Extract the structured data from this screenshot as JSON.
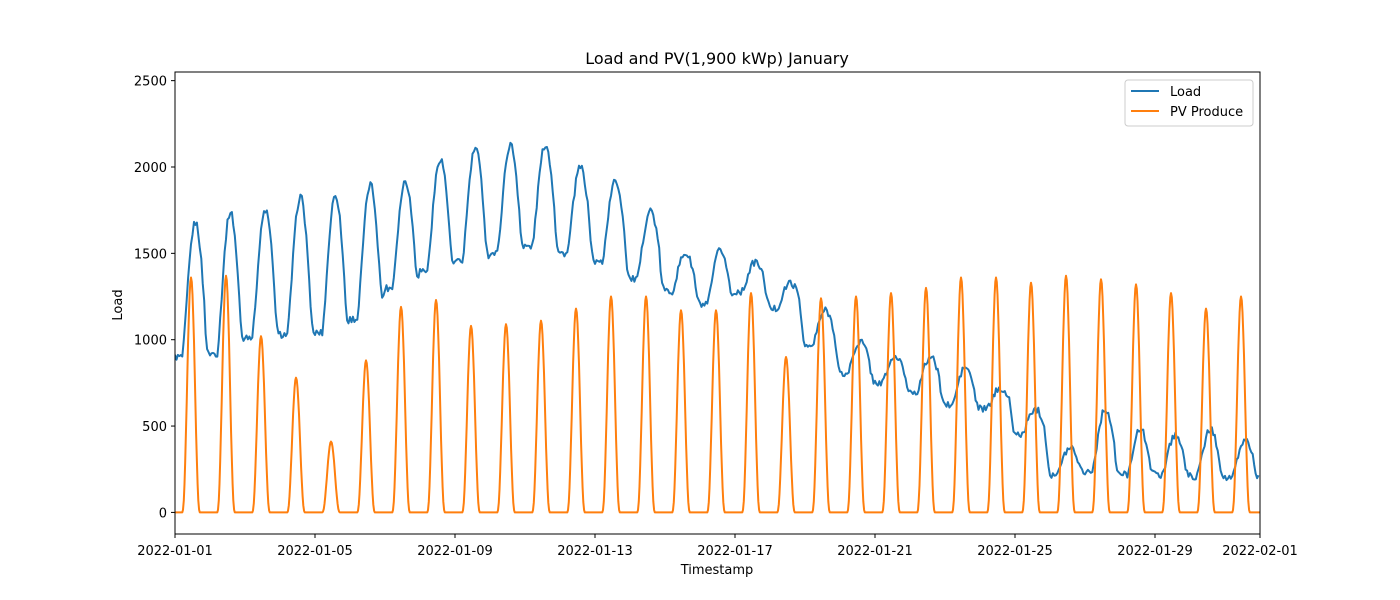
{
  "chart_data": {
    "type": "line",
    "title": "Load and PV(1,900 kWp) January",
    "xlabel": "Timestamp",
    "ylabel": "Load",
    "x_unit": "date",
    "xlim": [
      "2022-01-01",
      "2022-02-01"
    ],
    "ylim": [
      -125,
      2550
    ],
    "yticks": [
      0,
      500,
      1000,
      1500,
      2000,
      2500
    ],
    "xticks": [
      "2022-01-01",
      "2022-01-05",
      "2022-01-09",
      "2022-01-13",
      "2022-01-17",
      "2022-01-21",
      "2022-01-25",
      "2022-01-29",
      "2022-02-01"
    ],
    "grid": false,
    "legend_position": "top-right",
    "series": [
      {
        "name": "Load",
        "color": "#1f77b4",
        "daily_profile": [
          [
            "2022-01-01",
            900,
            1680
          ],
          [
            "2022-01-02",
            920,
            1740
          ],
          [
            "2022-01-03",
            1020,
            1750
          ],
          [
            "2022-01-04",
            1030,
            1830
          ],
          [
            "2022-01-05",
            1040,
            1840
          ],
          [
            "2022-01-06",
            1120,
            1900
          ],
          [
            "2022-01-07",
            1300,
            1920
          ],
          [
            "2022-01-08",
            1400,
            2050
          ],
          [
            "2022-01-09",
            1450,
            2110
          ],
          [
            "2022-01-10",
            1500,
            2130
          ],
          [
            "2022-01-11",
            1540,
            2130
          ],
          [
            "2022-01-12",
            1500,
            2000
          ],
          [
            "2022-01-13",
            1450,
            1920
          ],
          [
            "2022-01-14",
            1350,
            1750
          ],
          [
            "2022-01-15",
            1280,
            1500
          ],
          [
            "2022-01-16",
            1200,
            1520
          ],
          [
            "2022-01-17",
            1280,
            1450
          ],
          [
            "2022-01-18",
            1180,
            1330
          ],
          [
            "2022-01-19",
            960,
            1170
          ],
          [
            "2022-01-20",
            800,
            990
          ],
          [
            "2022-01-21",
            750,
            900
          ],
          [
            "2022-01-22",
            700,
            900
          ],
          [
            "2022-01-23",
            620,
            840
          ],
          [
            "2022-01-24",
            600,
            720
          ],
          [
            "2022-01-25",
            450,
            600
          ],
          [
            "2022-01-26",
            220,
            380
          ],
          [
            "2022-01-27",
            240,
            600
          ],
          [
            "2022-01-28",
            220,
            480
          ],
          [
            "2022-01-29",
            220,
            450
          ],
          [
            "2022-01-30",
            210,
            480
          ],
          [
            "2022-01-31",
            200,
            420
          ]
        ]
      },
      {
        "name": "PV Produce",
        "color": "#ff7f0e",
        "daily_peaks": [
          [
            "2022-01-01",
            1360
          ],
          [
            "2022-01-02",
            1370
          ],
          [
            "2022-01-03",
            1020
          ],
          [
            "2022-01-04",
            780
          ],
          [
            "2022-01-05",
            410
          ],
          [
            "2022-01-06",
            880
          ],
          [
            "2022-01-07",
            1190
          ],
          [
            "2022-01-08",
            1230
          ],
          [
            "2022-01-09",
            1080
          ],
          [
            "2022-01-10",
            1090
          ],
          [
            "2022-01-11",
            1110
          ],
          [
            "2022-01-12",
            1180
          ],
          [
            "2022-01-13",
            1250
          ],
          [
            "2022-01-14",
            1250
          ],
          [
            "2022-01-15",
            1170
          ],
          [
            "2022-01-16",
            1170
          ],
          [
            "2022-01-17",
            1270
          ],
          [
            "2022-01-18",
            900
          ],
          [
            "2022-01-19",
            1240
          ],
          [
            "2022-01-20",
            1250
          ],
          [
            "2022-01-21",
            1270
          ],
          [
            "2022-01-22",
            1300
          ],
          [
            "2022-01-23",
            1360
          ],
          [
            "2022-01-24",
            1360
          ],
          [
            "2022-01-25",
            1330
          ],
          [
            "2022-01-26",
            1370
          ],
          [
            "2022-01-27",
            1350
          ],
          [
            "2022-01-28",
            1320
          ],
          [
            "2022-01-29",
            1270
          ],
          [
            "2022-01-30",
            1180
          ],
          [
            "2022-01-31",
            1250
          ]
        ]
      }
    ]
  }
}
